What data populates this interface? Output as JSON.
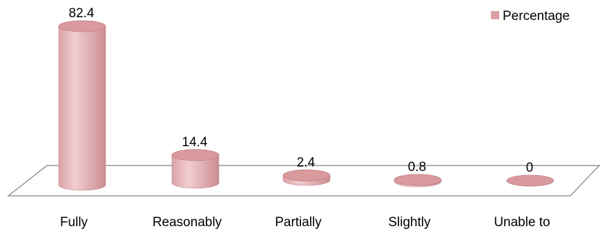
{
  "chart_data": {
    "type": "bar",
    "style": "3d-cylinder",
    "categories": [
      "Fully",
      "Reasonably",
      "Partially",
      "Slightly",
      "Unable to"
    ],
    "series": [
      {
        "name": "Percentage",
        "values": [
          82.4,
          14.4,
          2.4,
          0.8,
          0
        ]
      }
    ],
    "data_labels": [
      "82.4",
      "14.4",
      "2.4",
      "0.8",
      "0"
    ],
    "title": "",
    "xlabel": "",
    "ylabel": "",
    "ylim": [
      0,
      90
    ],
    "grid": false,
    "legend": {
      "position": "top-right"
    },
    "colors": {
      "bar_body": "#e6b3b6",
      "bar_body_dark": "#c98c91",
      "bar_top": "#d99a9e",
      "bar_top_stroke": "#c07f84",
      "floor_stroke": "#7f7f7f",
      "legend_swatch": "#d9a0a4"
    }
  }
}
